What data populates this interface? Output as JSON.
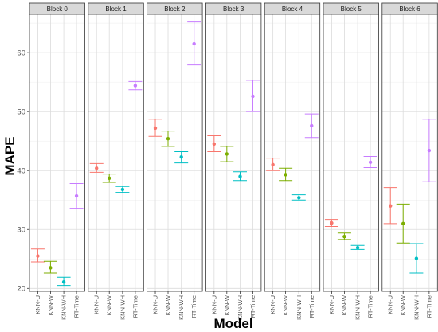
{
  "chart_data": {
    "type": "errorbar",
    "xlabel": "Model",
    "ylabel": "MAPE",
    "ylim": [
      19.5,
      66.5
    ],
    "yticks": [
      20,
      30,
      40,
      50,
      60
    ],
    "grid": true,
    "categories": [
      "KNN-U",
      "KNN-W",
      "KNN-WH",
      "RT-Time"
    ],
    "colors": [
      "#F8766D",
      "#7CAE00",
      "#00BFC4",
      "#C77CFF"
    ],
    "panels": [
      {
        "name": "Block 0",
        "points": [
          {
            "category": "KNN-U",
            "mean": 25.5,
            "low": 24.5,
            "high": 26.7
          },
          {
            "category": "KNN-W",
            "mean": 23.5,
            "low": 22.6,
            "high": 24.6
          },
          {
            "category": "KNN-WH",
            "mean": 21.1,
            "low": 20.5,
            "high": 21.9
          },
          {
            "category": "RT-Time",
            "mean": 35.7,
            "low": 33.6,
            "high": 37.8
          }
        ]
      },
      {
        "name": "Block 1",
        "points": [
          {
            "category": "KNN-U",
            "mean": 40.4,
            "low": 39.7,
            "high": 41.2
          },
          {
            "category": "KNN-W",
            "mean": 38.7,
            "low": 38.0,
            "high": 39.4
          },
          {
            "category": "KNN-WH",
            "mean": 36.8,
            "low": 36.3,
            "high": 37.3
          },
          {
            "category": "RT-Time",
            "mean": 54.4,
            "low": 53.7,
            "high": 55.1
          }
        ]
      },
      {
        "name": "Block 2",
        "points": [
          {
            "category": "KNN-U",
            "mean": 47.2,
            "low": 45.8,
            "high": 48.7
          },
          {
            "category": "KNN-W",
            "mean": 45.4,
            "low": 44.1,
            "high": 46.7
          },
          {
            "category": "KNN-WH",
            "mean": 42.3,
            "low": 41.3,
            "high": 43.2
          },
          {
            "category": "RT-Time",
            "mean": 61.5,
            "low": 57.9,
            "high": 65.2
          }
        ]
      },
      {
        "name": "Block 3",
        "points": [
          {
            "category": "KNN-U",
            "mean": 44.5,
            "low": 43.2,
            "high": 45.9
          },
          {
            "category": "KNN-W",
            "mean": 42.8,
            "low": 41.5,
            "high": 44.1
          },
          {
            "category": "KNN-WH",
            "mean": 39.0,
            "low": 38.3,
            "high": 39.8
          },
          {
            "category": "RT-Time",
            "mean": 52.6,
            "low": 50.0,
            "high": 55.3
          }
        ]
      },
      {
        "name": "Block 4",
        "points": [
          {
            "category": "KNN-U",
            "mean": 41.0,
            "low": 40.0,
            "high": 42.1
          },
          {
            "category": "KNN-W",
            "mean": 39.3,
            "low": 38.3,
            "high": 40.4
          },
          {
            "category": "KNN-WH",
            "mean": 35.4,
            "low": 35.0,
            "high": 35.9
          },
          {
            "category": "RT-Time",
            "mean": 47.6,
            "low": 45.6,
            "high": 49.6
          }
        ]
      },
      {
        "name": "Block 5",
        "points": [
          {
            "category": "KNN-U",
            "mean": 31.1,
            "low": 30.5,
            "high": 31.7
          },
          {
            "category": "KNN-W",
            "mean": 28.8,
            "low": 28.3,
            "high": 29.4
          },
          {
            "category": "KNN-WH",
            "mean": 26.9,
            "low": 26.6,
            "high": 27.3
          },
          {
            "category": "RT-Time",
            "mean": 41.4,
            "low": 40.5,
            "high": 42.4
          }
        ]
      },
      {
        "name": "Block 6",
        "points": [
          {
            "category": "KNN-U",
            "mean": 34.0,
            "low": 31.0,
            "high": 37.1
          },
          {
            "category": "KNN-W",
            "mean": 31.0,
            "low": 27.7,
            "high": 34.3
          },
          {
            "category": "KNN-WH",
            "mean": 25.1,
            "low": 22.6,
            "high": 27.6
          },
          {
            "category": "RT-Time",
            "mean": 43.4,
            "low": 38.1,
            "high": 48.7
          }
        ]
      }
    ]
  }
}
